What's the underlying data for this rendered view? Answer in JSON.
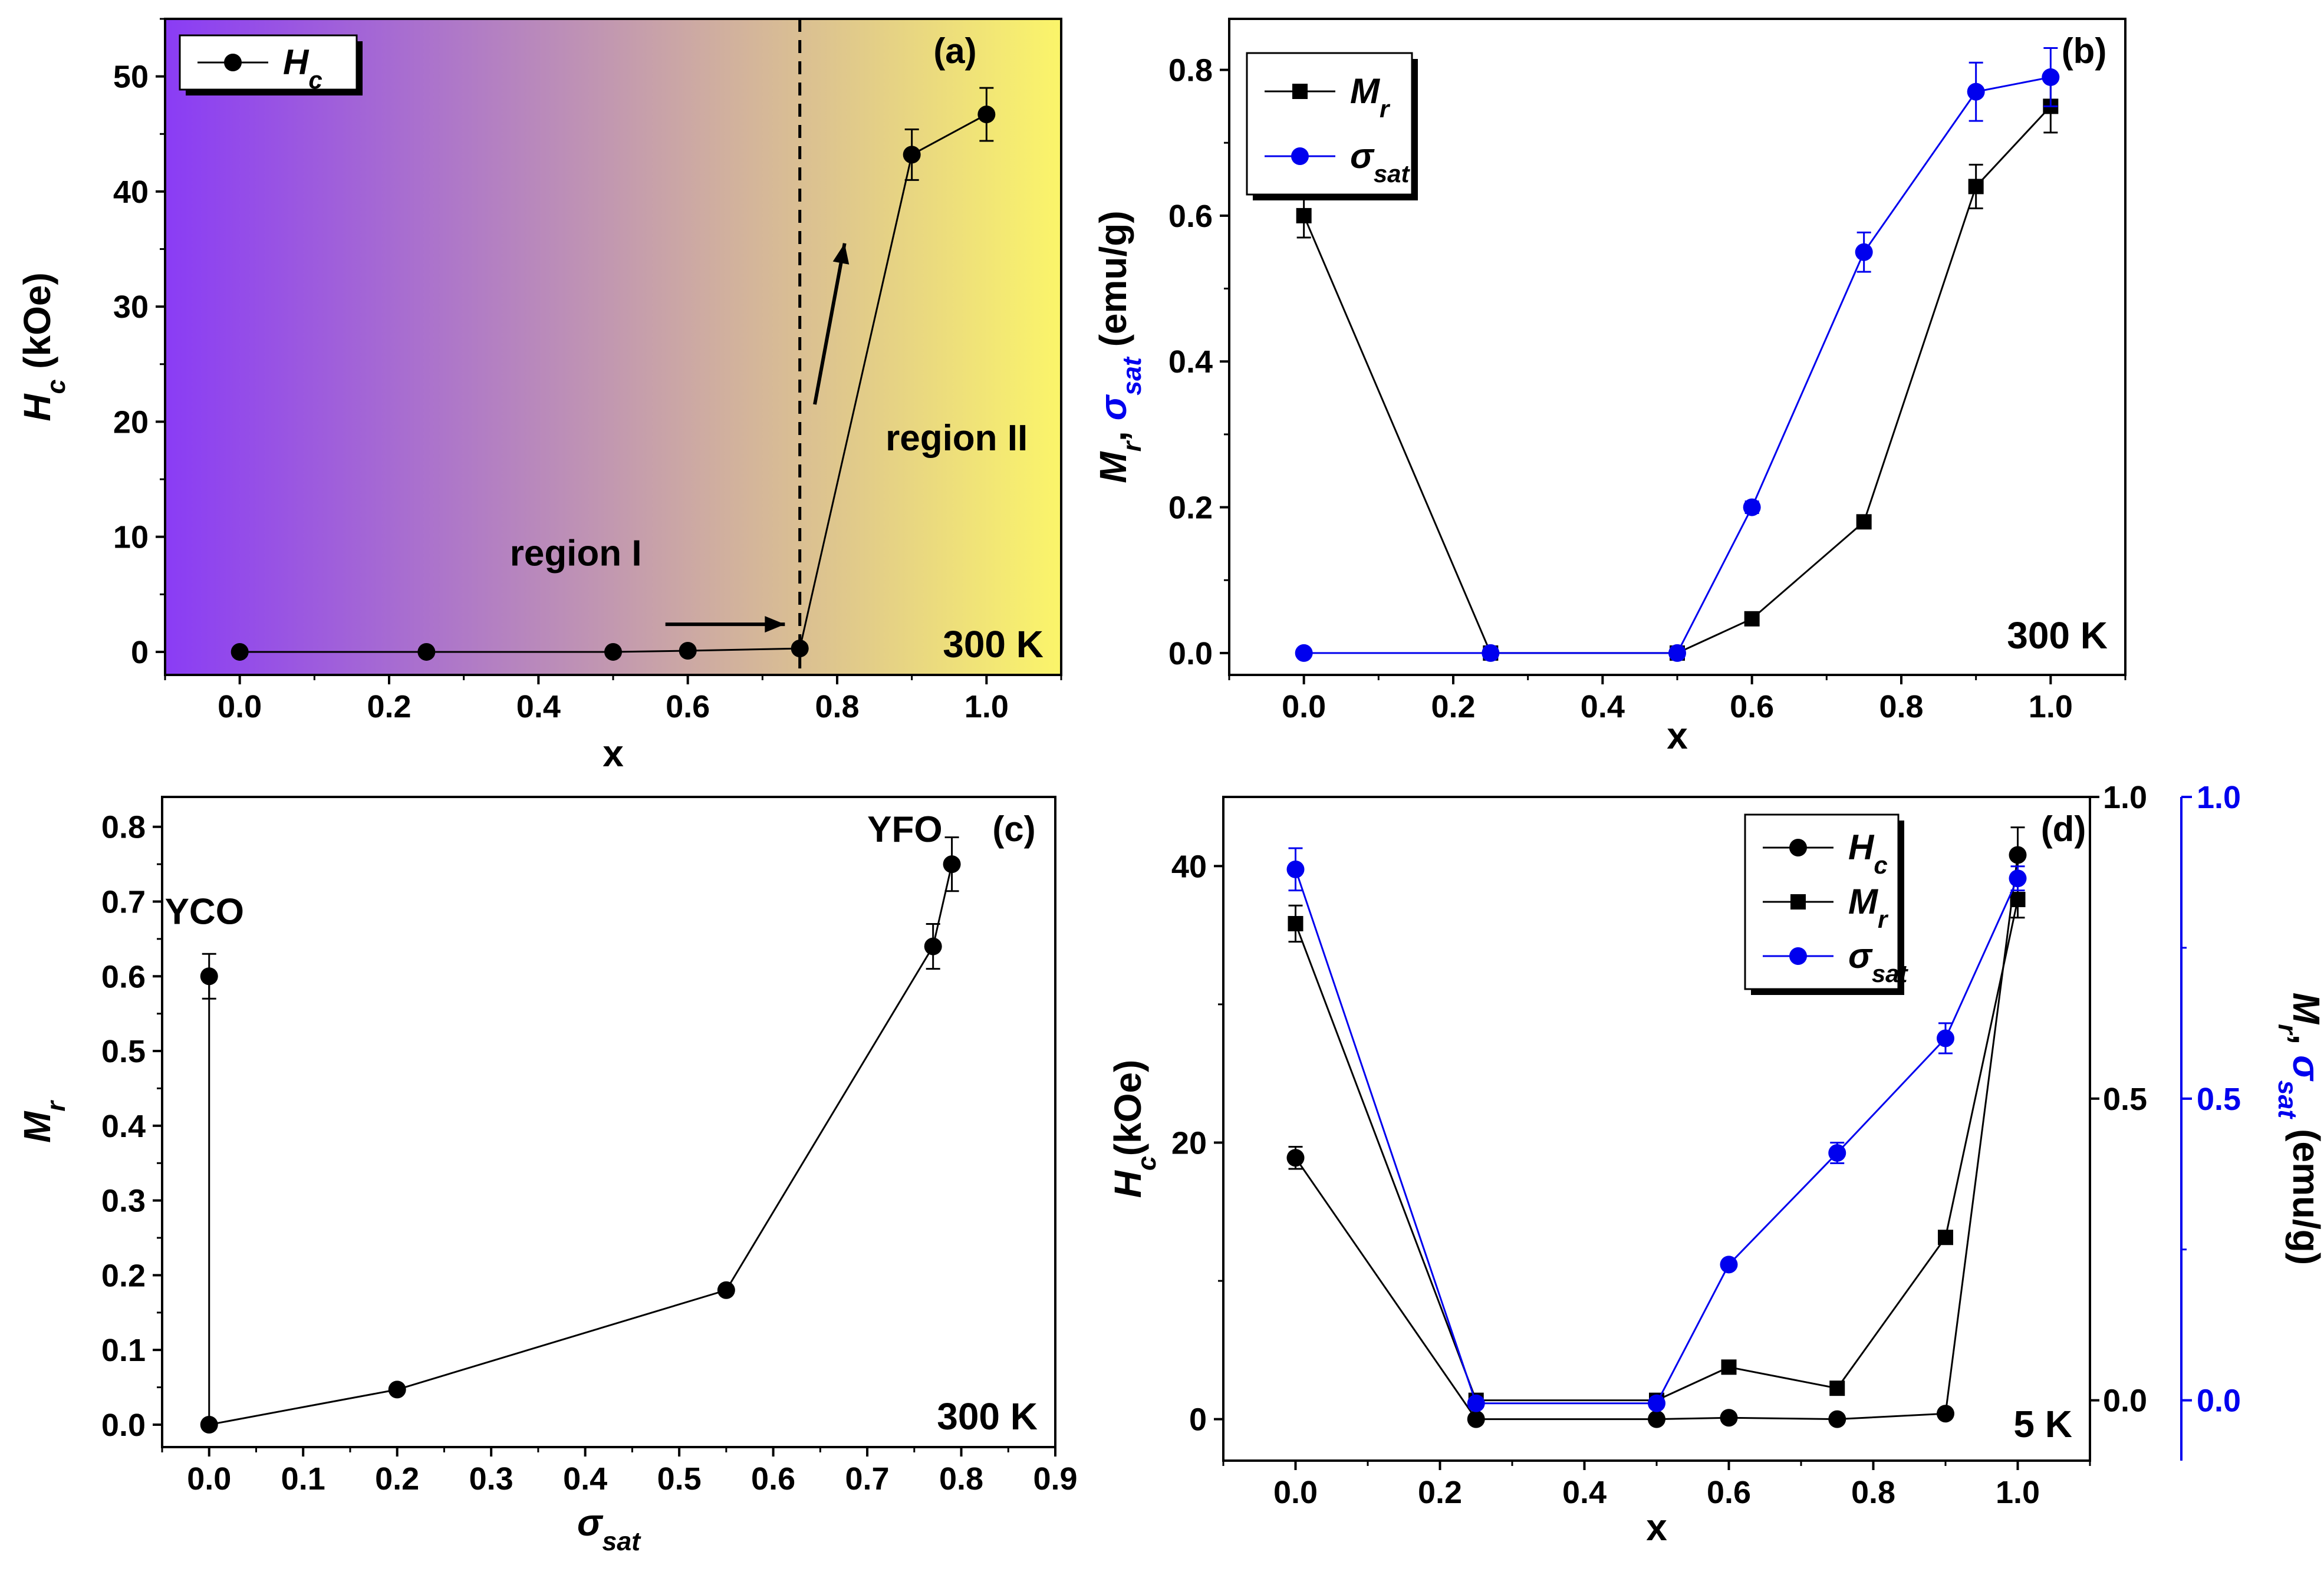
{
  "chart_data": [
    {
      "id": "a",
      "type": "line",
      "panel_label": "(a)",
      "temperature_label": "300 K",
      "xlabel": "x",
      "ylabel": "H",
      "ylabel_sub": "c",
      "ylabel_unit": " (kOe)",
      "xlim": [
        -0.1,
        1.1
      ],
      "ylim": [
        -2,
        55
      ],
      "xticks": [
        0.0,
        0.2,
        0.4,
        0.6,
        0.8,
        1.0
      ],
      "xtick_labels": [
        "0.0",
        "0.2",
        "0.4",
        "0.6",
        "0.8",
        "1.0"
      ],
      "yticks": [
        0,
        10,
        20,
        30,
        40,
        50
      ],
      "ytick_labels": [
        "0",
        "10",
        "20",
        "30",
        "40",
        "50"
      ],
      "background_gradient": [
        "#8a3cf5",
        "#fbf56a"
      ],
      "legend": [
        {
          "text": "H",
          "sub": "c",
          "marker": "circle"
        }
      ],
      "series": [
        {
          "name": "Hc",
          "marker": "circle",
          "color": "#000000",
          "x": [
            0.0,
            0.25,
            0.5,
            0.6,
            0.75,
            0.9,
            1.0
          ],
          "y": [
            0.0,
            0.0,
            0.0,
            0.1,
            0.3,
            43.2,
            46.7
          ],
          "err": [
            0,
            0,
            0,
            0,
            0,
            2.2,
            2.3
          ]
        }
      ],
      "annotations": [
        {
          "text": "region I",
          "x": 0.45,
          "y": 7.5
        },
        {
          "text": "region II",
          "x": 0.96,
          "y": 17.5
        }
      ],
      "vline_x": 0.75,
      "arrows": [
        {
          "from": [
            0.57,
            2.4
          ],
          "to": [
            0.73,
            2.4
          ]
        },
        {
          "from": [
            0.77,
            21.5
          ],
          "to": [
            0.81,
            35.5
          ]
        }
      ]
    },
    {
      "id": "b",
      "type": "line",
      "panel_label": "(b)",
      "temperature_label": "300 K",
      "xlabel": "x",
      "ylabel_parts": [
        {
          "text": "M",
          "sub": "r",
          "color": "#000000"
        },
        {
          "text": ", ",
          "color": "#000000"
        },
        {
          "text": "σ",
          "sub": "sat",
          "color": "#0000ee"
        },
        {
          "text": " (emu/g)",
          "color": "#000000"
        }
      ],
      "xlim": [
        -0.1,
        1.1
      ],
      "ylim": [
        -0.03,
        0.87
      ],
      "xticks": [
        0.0,
        0.2,
        0.4,
        0.6,
        0.8,
        1.0
      ],
      "xtick_labels": [
        "0.0",
        "0.2",
        "0.4",
        "0.6",
        "0.8",
        "1.0"
      ],
      "yticks": [
        0.0,
        0.2,
        0.4,
        0.6,
        0.8
      ],
      "ytick_labels": [
        "0.0",
        "0.2",
        "0.4",
        "0.6",
        "0.8"
      ],
      "legend": [
        {
          "text": "M",
          "sub": "r",
          "marker": "square",
          "color": "#000000"
        },
        {
          "text": "σ",
          "sub": "sat",
          "marker": "circle",
          "color": "#0000ee"
        }
      ],
      "series": [
        {
          "name": "Mr",
          "marker": "square",
          "color": "#000000",
          "x": [
            0.0,
            0.25,
            0.5,
            0.6,
            0.75,
            0.9,
            1.0
          ],
          "y": [
            0.6,
            0.0,
            0.0,
            0.047,
            0.18,
            0.64,
            0.75
          ],
          "err": [
            0.03,
            0,
            0,
            0,
            0,
            0.03,
            0.036
          ]
        },
        {
          "name": "σsat",
          "marker": "circle",
          "color": "#0000ee",
          "x": [
            0.0,
            0.25,
            0.5,
            0.6,
            0.75,
            0.9,
            1.0
          ],
          "y": [
            0.0,
            0.0,
            0.0,
            0.2,
            0.55,
            0.77,
            0.79
          ],
          "err": [
            0,
            0,
            0,
            0.008,
            0.027,
            0.04,
            0.04
          ]
        }
      ]
    },
    {
      "id": "c",
      "type": "line",
      "panel_label": "(c)",
      "temperature_label": "300 K",
      "xlabel": "σ",
      "xlabel_sub": "sat",
      "ylabel": "M",
      "ylabel_sub": "r",
      "xlim": [
        -0.05,
        0.9
      ],
      "ylim": [
        -0.03,
        0.84
      ],
      "xticks": [
        0.0,
        0.1,
        0.2,
        0.3,
        0.4,
        0.5,
        0.6,
        0.7,
        0.8,
        0.9
      ],
      "xtick_labels": [
        "0.0",
        "0.1",
        "0.2",
        "0.3",
        "0.4",
        "0.5",
        "0.6",
        "0.7",
        "0.8",
        "0.9"
      ],
      "yticks": [
        0.0,
        0.1,
        0.2,
        0.3,
        0.4,
        0.5,
        0.6,
        0.7,
        0.8
      ],
      "ytick_labels": [
        "0.0",
        "0.1",
        "0.2",
        "0.3",
        "0.4",
        "0.5",
        "0.6",
        "0.7",
        "0.8"
      ],
      "series": [
        {
          "name": "Mr vs σsat",
          "marker": "circle",
          "color": "#000000",
          "x": [
            0.0,
            0.0,
            0.2,
            0.55,
            0.77,
            0.79
          ],
          "y": [
            0.6,
            0.0,
            0.047,
            0.18,
            0.64,
            0.75
          ],
          "err": [
            0.03,
            0,
            0,
            0,
            0.03,
            0.036
          ]
        }
      ],
      "annotations": [
        {
          "text": "YCO",
          "x": -0.005,
          "y": 0.67
        },
        {
          "text": "YFO",
          "x": 0.74,
          "y": 0.78
        }
      ]
    },
    {
      "id": "d",
      "type": "line",
      "panel_label": "(d)",
      "temperature_label": "5 K",
      "xlabel": "x",
      "ylabel": "H",
      "ylabel_sub": "c",
      "ylabel_unit": "(kOe)",
      "y2label_parts": [
        {
          "text": "M",
          "sub": "r",
          "color": "#000000"
        },
        {
          "text": ", ",
          "color": "#000000"
        },
        {
          "text": "σ",
          "sub": "sat",
          "color": "#0000ee"
        },
        {
          "text": " (emu/g)",
          "color": "#000000"
        }
      ],
      "xlim": [
        -0.1,
        1.1
      ],
      "ylim": [
        -3,
        45
      ],
      "y2lim": [
        -0.1,
        1.0
      ],
      "xticks": [
        0.0,
        0.2,
        0.4,
        0.6,
        0.8,
        1.0
      ],
      "xtick_labels": [
        "0.0",
        "0.2",
        "0.4",
        "0.6",
        "0.8",
        "1.0"
      ],
      "yticks": [
        0,
        20,
        40
      ],
      "ytick_labels": [
        "0",
        "20",
        "40"
      ],
      "y2ticks_black": [
        0.0,
        0.5,
        1.0
      ],
      "y2tick_labels_black": [
        "0.0",
        "0.5",
        "1.0"
      ],
      "y2ticks_blue": [
        0.0,
        0.5,
        1.0
      ],
      "y2tick_labels_blue": [
        "0.0",
        "0.5",
        "1.0"
      ],
      "legend": [
        {
          "text": "H",
          "sub": "c",
          "marker": "circle",
          "color": "#000000"
        },
        {
          "text": "M",
          "sub": "r",
          "marker": "square",
          "color": "#000000"
        },
        {
          "text": "σ",
          "sub": "sat",
          "marker": "circle",
          "color": "#0000ee"
        }
      ],
      "series": [
        {
          "name": "Hc",
          "axis": "left",
          "marker": "circle",
          "color": "#000000",
          "x": [
            0.0,
            0.25,
            0.5,
            0.6,
            0.75,
            0.9,
            1.0
          ],
          "y": [
            18.9,
            0.0,
            0.0,
            0.1,
            0.0,
            0.4,
            40.8
          ],
          "err": [
            0.8,
            0,
            0,
            0,
            0,
            0,
            2.0
          ]
        },
        {
          "name": "Mr",
          "axis": "right",
          "marker": "square",
          "color": "#000000",
          "x": [
            0.0,
            0.25,
            0.5,
            0.6,
            0.75,
            0.9,
            1.0
          ],
          "y": [
            0.79,
            0.0,
            0.0,
            0.055,
            0.02,
            0.27,
            0.83
          ],
          "err": [
            0.03,
            0.005,
            0.005,
            0,
            0,
            0,
            0.03
          ]
        },
        {
          "name": "σsat",
          "axis": "right",
          "marker": "circle",
          "color": "#0000ee",
          "x": [
            0.0,
            0.25,
            0.5,
            0.6,
            0.75,
            0.9,
            1.0
          ],
          "y": [
            0.88,
            -0.005,
            -0.005,
            0.225,
            0.41,
            0.6,
            0.865
          ],
          "err": [
            0.035,
            0,
            0,
            0,
            0.017,
            0.025,
            0.02
          ]
        }
      ]
    }
  ]
}
